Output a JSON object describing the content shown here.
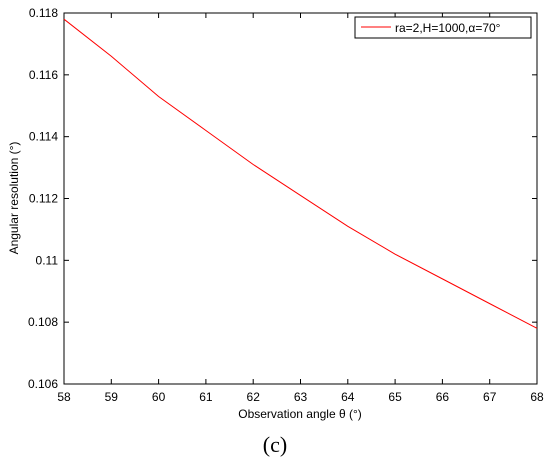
{
  "chart_data": {
    "type": "line",
    "xlabel": "Observation angle θ (°)",
    "ylabel": "Angular resolution (°)",
    "xlim": [
      58,
      68
    ],
    "ylim": [
      0.106,
      0.118
    ],
    "xticks": [
      58,
      59,
      60,
      61,
      62,
      63,
      64,
      65,
      66,
      67,
      68
    ],
    "yticks": [
      0.106,
      0.108,
      0.11,
      0.112,
      0.114,
      0.116,
      0.118
    ],
    "xtick_labels": [
      "58",
      "59",
      "60",
      "61",
      "62",
      "63",
      "64",
      "65",
      "66",
      "67",
      "68"
    ],
    "ytick_labels": [
      "0.106",
      "0.108",
      "0.11",
      "0.112",
      "0.114",
      "0.116",
      "0.118"
    ],
    "grid": false,
    "legend_position": "top-right",
    "series": [
      {
        "name": "ra=2,H=1000,α=70°",
        "color": "#ff0000",
        "x": [
          58,
          59,
          60,
          61,
          62,
          63,
          64,
          65,
          66,
          67,
          68
        ],
        "y": [
          0.1178,
          0.1166,
          0.1153,
          0.1142,
          0.1131,
          0.1121,
          0.1111,
          0.1102,
          0.1094,
          0.1086,
          0.1078
        ]
      }
    ]
  },
  "caption": "(c)"
}
